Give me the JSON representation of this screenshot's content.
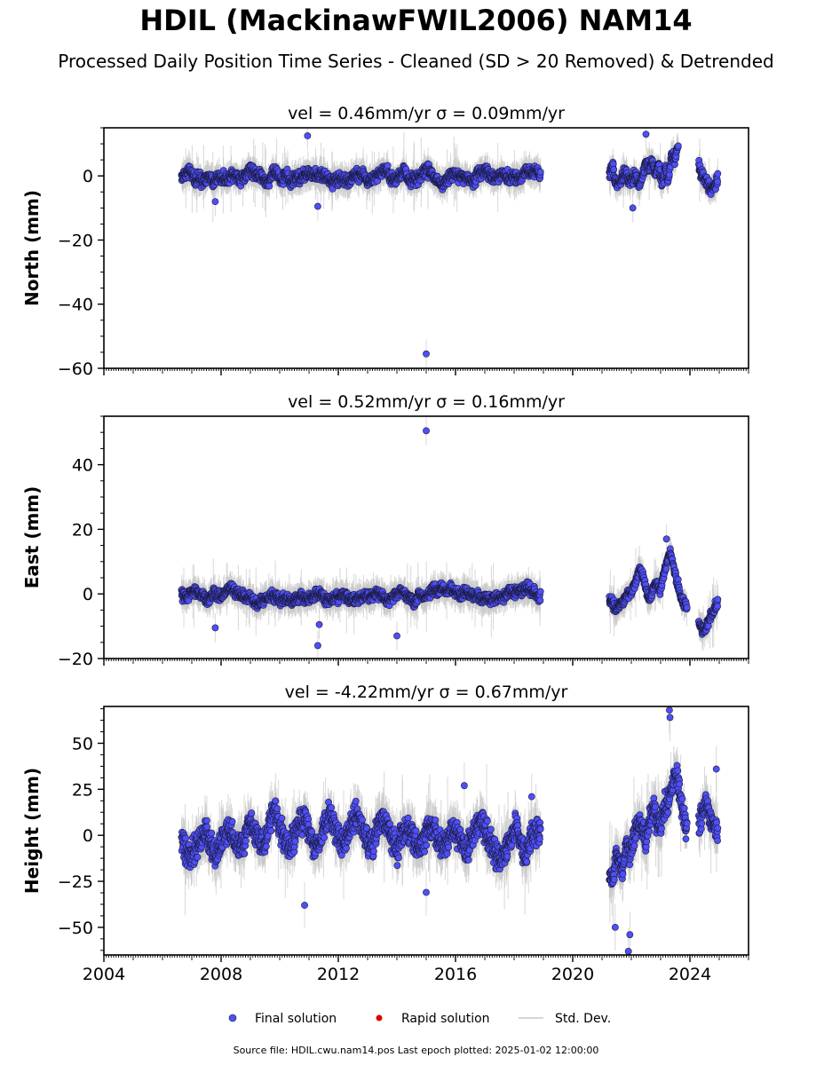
{
  "title": "HDIL (MackinawFWIL2006) NAM14",
  "subtitle": "Processed Daily Position Time Series - Cleaned (SD > 20 Removed) & Detrended",
  "footer": "Source file: HDIL.cwu.nam14.pos  Last epoch plotted: 2025-01-02 12:00:00",
  "colors": {
    "final": "#4f4ff5",
    "final_edge": "#1a1a40",
    "rapid": "#e00000",
    "stddev": "#c8c8c8",
    "axis": "#000000"
  },
  "chart_data": [
    {
      "type": "scatter",
      "panel": "north",
      "title": "vel = 0.46mm/yr   σ = 0.09mm/yr",
      "ylabel": "North (mm)",
      "xlim": [
        2004,
        2026
      ],
      "ylim": [
        -60,
        15
      ],
      "yticks": [
        -60,
        -40,
        -20,
        0
      ],
      "xticks": [
        2004,
        2008,
        2012,
        2016,
        2020,
        2024
      ],
      "grid": false,
      "segments": [
        {
          "start": 2006.65,
          "end": 2018.9,
          "values": [
            0,
            1,
            1,
            -1,
            -1,
            -2,
            0,
            -2,
            0,
            -1,
            -1,
            1,
            0,
            -1,
            0,
            2,
            1,
            0,
            -1,
            -2,
            1,
            1,
            -2,
            1,
            -2,
            0,
            -1,
            0,
            1,
            1,
            0,
            0,
            -1,
            -2,
            -1,
            -1,
            -1,
            -2,
            1,
            0,
            1,
            -2,
            -1,
            0,
            1,
            2,
            -1,
            -1,
            0,
            2,
            -1,
            -1,
            -1,
            1,
            2,
            1,
            -2,
            -2,
            -2,
            0,
            1,
            0,
            0,
            -1,
            -2,
            0,
            1,
            2,
            0,
            -1,
            0,
            1,
            -1,
            0,
            -1,
            0,
            2,
            1,
            2,
            0
          ]
        },
        {
          "start": 2021.25,
          "end": 2023.6,
          "values": [
            1,
            3,
            -2,
            -3,
            0,
            1,
            -2,
            -1,
            0,
            -3,
            -1,
            4,
            3,
            4,
            0,
            3,
            -3,
            2,
            -1,
            7,
            5,
            10
          ]
        },
        {
          "start": 2024.3,
          "end": 2024.95,
          "values": [
            3,
            0,
            -2,
            -4,
            -3,
            -1
          ]
        }
      ],
      "outliers": [
        {
          "x": 2015.0,
          "y": -55.5
        },
        {
          "x": 2010.95,
          "y": 12.5
        },
        {
          "x": 2022.5,
          "y": 13
        },
        {
          "x": 2011.3,
          "y": -9.5
        },
        {
          "x": 2007.8,
          "y": -8
        },
        {
          "x": 2022.05,
          "y": -10
        }
      ]
    },
    {
      "type": "scatter",
      "panel": "east",
      "title": "vel = 0.52mm/yr   σ = 0.16mm/yr",
      "ylabel": "East (mm)",
      "xlim": [
        2004,
        2026
      ],
      "ylim": [
        -20,
        55
      ],
      "yticks": [
        -20,
        0,
        20,
        40
      ],
      "xticks": [
        2004,
        2008,
        2012,
        2016,
        2020,
        2024
      ],
      "grid": false,
      "segments": [
        {
          "start": 2006.65,
          "end": 2018.9,
          "values": [
            0,
            -1,
            0,
            1,
            0,
            -1,
            -2,
            0,
            0,
            -1,
            1,
            2,
            1,
            0,
            -1,
            -1,
            -2,
            -3,
            -2,
            -1,
            0,
            -1,
            -2,
            -1,
            -2,
            -2,
            -1,
            -1,
            -2,
            -1,
            0,
            0,
            -2,
            -2,
            -1,
            -1,
            0,
            -1,
            -2,
            -2,
            -1,
            -1,
            -1,
            0,
            0,
            -1,
            -2,
            -1,
            0,
            1,
            -1,
            -1,
            -3,
            0,
            -1,
            0,
            1,
            1,
            2,
            1,
            2,
            0,
            0,
            1,
            0,
            -1,
            0,
            -2,
            -1,
            -2,
            -1,
            -1,
            -1,
            1,
            0,
            1,
            1,
            2,
            1,
            0,
            -1
          ]
        },
        {
          "start": 2021.25,
          "end": 2023.9,
          "values": [
            -1,
            -3,
            -5,
            -3,
            -2,
            -1,
            0,
            2,
            4,
            8,
            5,
            1,
            -2,
            2,
            4,
            1,
            6,
            10,
            13,
            8,
            4,
            0,
            -3,
            -4
          ]
        },
        {
          "start": 2024.3,
          "end": 2024.95,
          "values": [
            -8,
            -12,
            -10,
            -7,
            -5,
            -3
          ]
        }
      ],
      "outliers": [
        {
          "x": 2015.0,
          "y": 50.5
        },
        {
          "x": 2011.3,
          "y": -16
        },
        {
          "x": 2014.0,
          "y": -13
        },
        {
          "x": 2007.8,
          "y": -10.5
        },
        {
          "x": 2011.35,
          "y": -9.5
        },
        {
          "x": 2023.2,
          "y": 17
        }
      ]
    },
    {
      "type": "scatter",
      "panel": "height",
      "title": "vel = -4.22mm/yr   σ = 0.67mm/yr",
      "ylabel": "Height (mm)",
      "xlim": [
        2004,
        2026
      ],
      "ylim": [
        -65,
        70
      ],
      "yticks": [
        -50,
        -25,
        0,
        25,
        50
      ],
      "xticks": [
        2004,
        2008,
        2012,
        2016,
        2020,
        2024
      ],
      "grid": false,
      "segments": [
        {
          "start": 2006.65,
          "end": 2018.9,
          "values": [
            -3,
            -8,
            -12,
            -6,
            -2,
            3,
            -6,
            -10,
            -4,
            2,
            5,
            -4,
            -6,
            0,
            8,
            2,
            -5,
            -3,
            8,
            14,
            3,
            -2,
            -8,
            0,
            6,
            10,
            2,
            -6,
            -4,
            4,
            12,
            6,
            -2,
            -6,
            3,
            8,
            10,
            2,
            -6,
            -4,
            6,
            10,
            4,
            -4,
            -8,
            2,
            4,
            0,
            -8,
            -4,
            2,
            6,
            -2,
            -6,
            -3,
            4,
            2,
            -5,
            -9,
            -2,
            5,
            8,
            0,
            -6,
            -10,
            -14,
            -8,
            -2,
            4,
            -4,
            -10,
            -2,
            2,
            0
          ]
        },
        {
          "start": 2021.25,
          "end": 2023.9,
          "values": [
            -18,
            -25,
            -10,
            -15,
            -20,
            -5,
            -8,
            -2,
            5,
            8,
            3,
            -4,
            10,
            15,
            8,
            4,
            12,
            18,
            22,
            30,
            35,
            20,
            10,
            5
          ]
        },
        {
          "start": 2024.3,
          "end": 2024.95,
          "values": [
            5,
            12,
            18,
            10,
            6,
            2
          ]
        }
      ],
      "outliers": [
        {
          "x": 2023.3,
          "y": 68
        },
        {
          "x": 2023.32,
          "y": 64
        },
        {
          "x": 2021.9,
          "y": -63
        },
        {
          "x": 2021.95,
          "y": -54
        },
        {
          "x": 2010.85,
          "y": -38
        },
        {
          "x": 2015.0,
          "y": -31
        },
        {
          "x": 2021.45,
          "y": -50
        },
        {
          "x": 2016.3,
          "y": 27
        },
        {
          "x": 2024.9,
          "y": 36
        },
        {
          "x": 2018.6,
          "y": 21
        }
      ]
    }
  ],
  "xtick_labels": [
    "2004",
    "2008",
    "2012",
    "2016",
    "2020",
    "2024"
  ],
  "legend": {
    "placement": "bottom-center",
    "items": [
      {
        "label": "Final solution",
        "kind": "final"
      },
      {
        "label": "Rapid solution",
        "kind": "rapid"
      },
      {
        "label": "Std. Dev.",
        "kind": "stddev"
      }
    ]
  }
}
